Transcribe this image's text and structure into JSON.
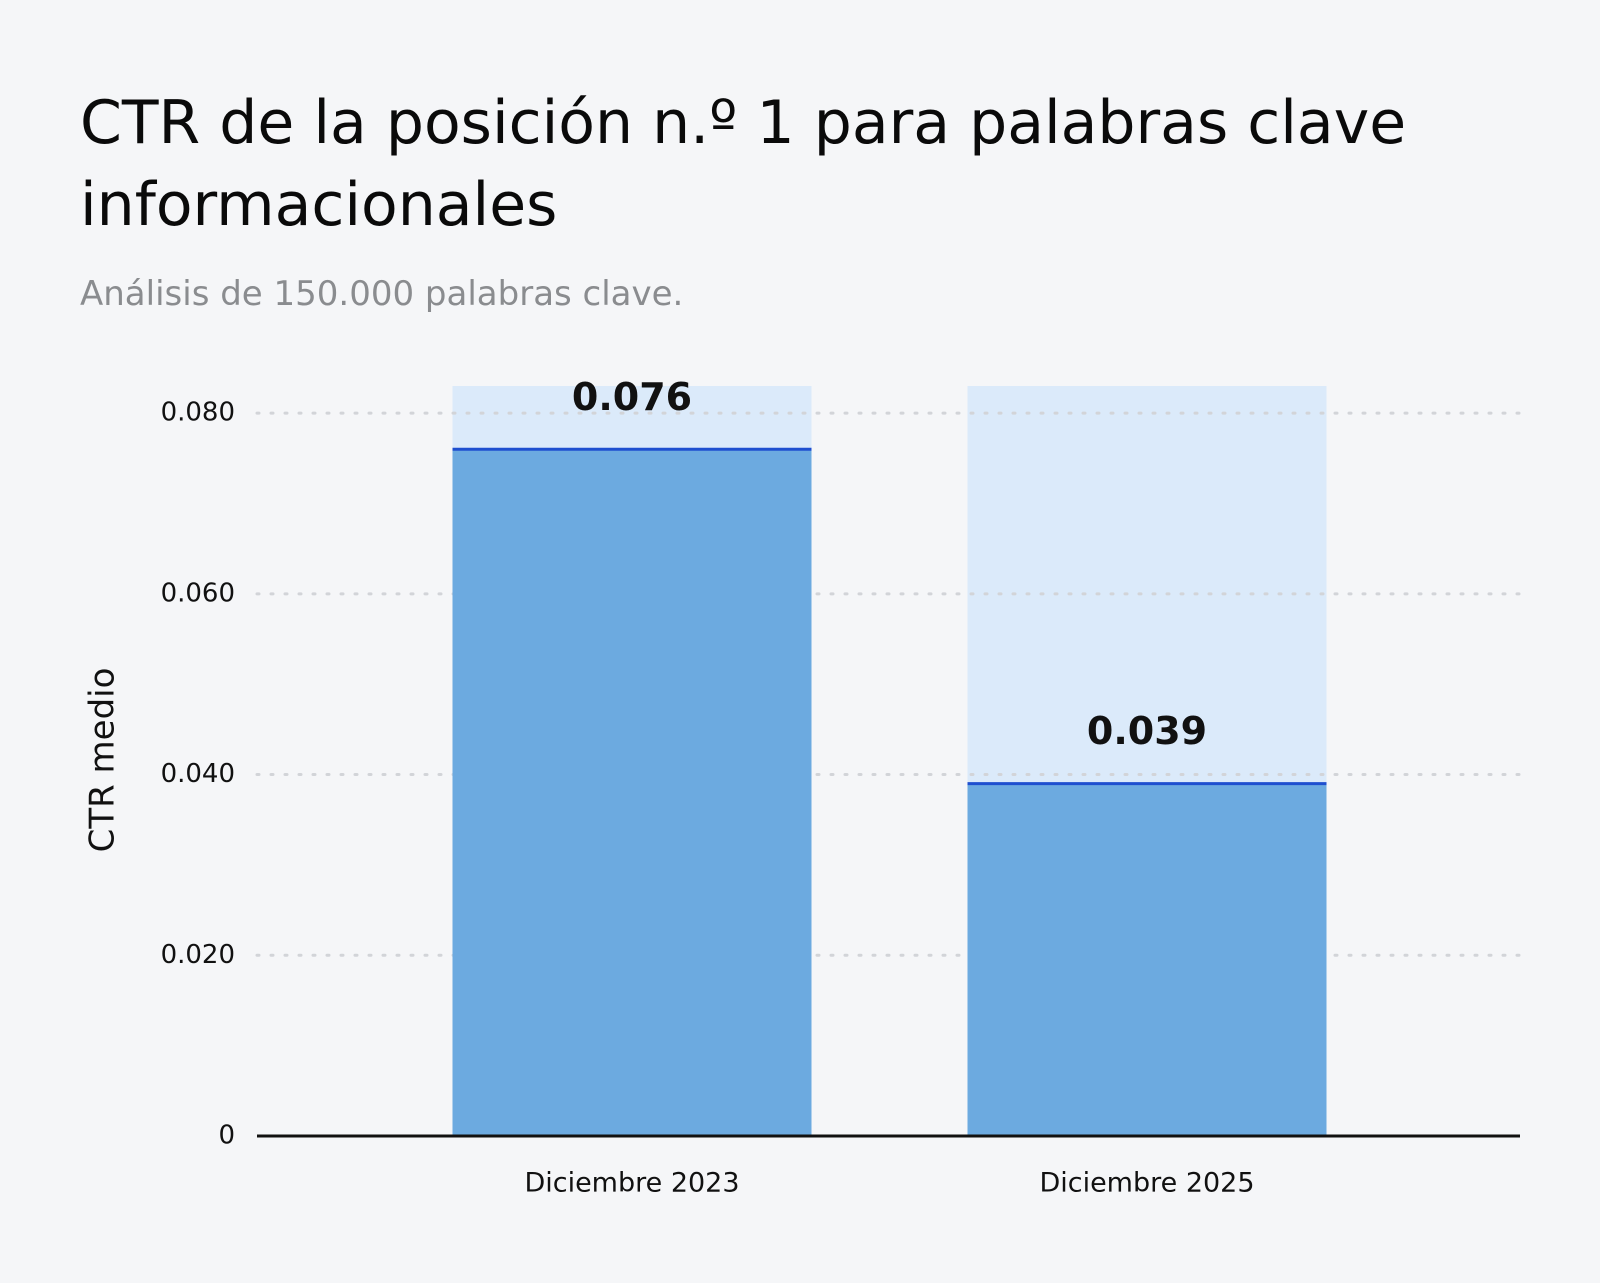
{
  "chart_data": {
    "type": "bar",
    "title": "CTR de la posición n.º 1 para palabras clave informacionales",
    "subtitle": "Análisis de 150.000 palabras clave.",
    "y_label": "CTR medio",
    "categories": [
      "Diciembre 2023",
      "Diciembre 2025"
    ],
    "values": [
      0.076,
      0.039
    ],
    "value_labels": [
      "0.076",
      "0.039"
    ],
    "color": "#6caae0",
    "ylim": [
      0,
      0.083
    ],
    "yticks": [
      0,
      {
        "value": 0.02,
        "label": "0.020"
      },
      {
        "value": 0.04,
        "label": "0.040"
      },
      {
        "value": 0.06,
        "label": "0.060"
      },
      {
        "value": 0.08,
        "label": "0.080"
      }
    ],
    "grid": true
  }
}
